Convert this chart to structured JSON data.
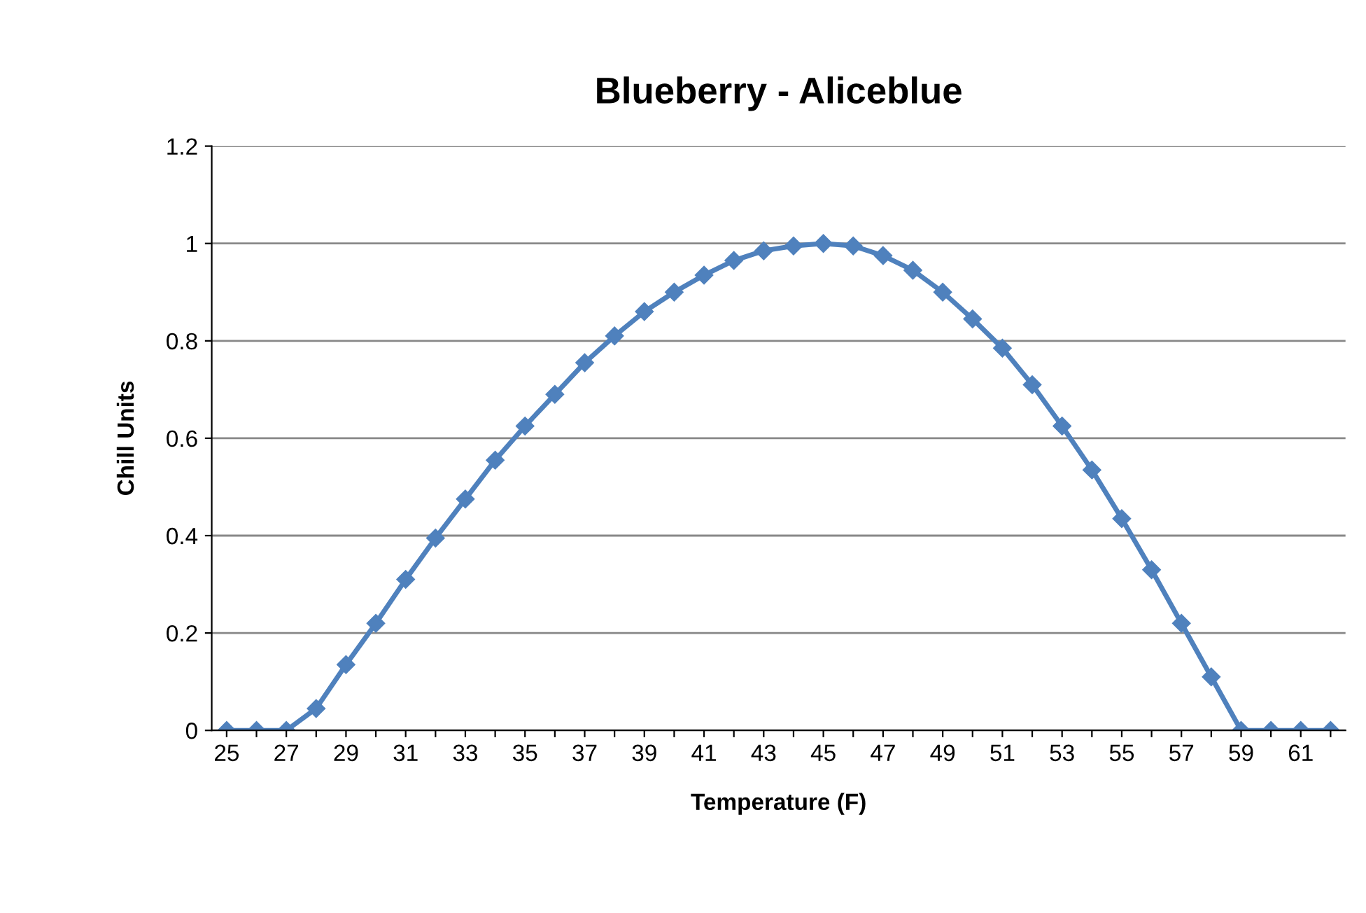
{
  "chart_data": {
    "type": "line",
    "title": "Blueberry - Aliceblue",
    "xlabel": "Temperature (F)",
    "ylabel": "Chill Units",
    "categories": [
      "25",
      null,
      "27",
      null,
      "29",
      null,
      "31",
      null,
      "33",
      null,
      "35",
      null,
      "37",
      null,
      "39",
      null,
      "41",
      null,
      "43",
      null,
      "45",
      null,
      "47",
      null,
      "49",
      null,
      "51",
      null,
      "53",
      null,
      "55",
      null,
      "57",
      null,
      "59",
      null,
      "61",
      null
    ],
    "series": [
      {
        "color": "#4f81bd",
        "values": [
          0,
          0,
          0,
          0.045,
          0.135,
          0.22,
          0.31,
          0.395,
          0.475,
          0.555,
          0.625,
          0.69,
          0.755,
          0.81,
          0.86,
          0.9,
          0.935,
          0.965,
          0.985,
          0.995,
          1.0,
          0.995,
          0.975,
          0.945,
          0.9,
          0.845,
          0.785,
          0.71,
          0.625,
          0.535,
          0.435,
          0.33,
          0.22,
          0.11,
          0,
          0,
          0,
          0
        ]
      }
    ],
    "ylim": [
      0,
      1.2
    ],
    "yticks": [
      0,
      {
        "value": 0.2,
        "label": "0.2"
      },
      {
        "value": 0.4,
        "label": "0.4"
      },
      {
        "value": 0.6,
        "label": "0.6"
      },
      {
        "value": 0.8,
        "label": "0.8"
      },
      1,
      {
        "value": 1.2,
        "label": "1.2"
      }
    ],
    "grid": "y",
    "marker": "diamond",
    "line_style": "solid"
  }
}
